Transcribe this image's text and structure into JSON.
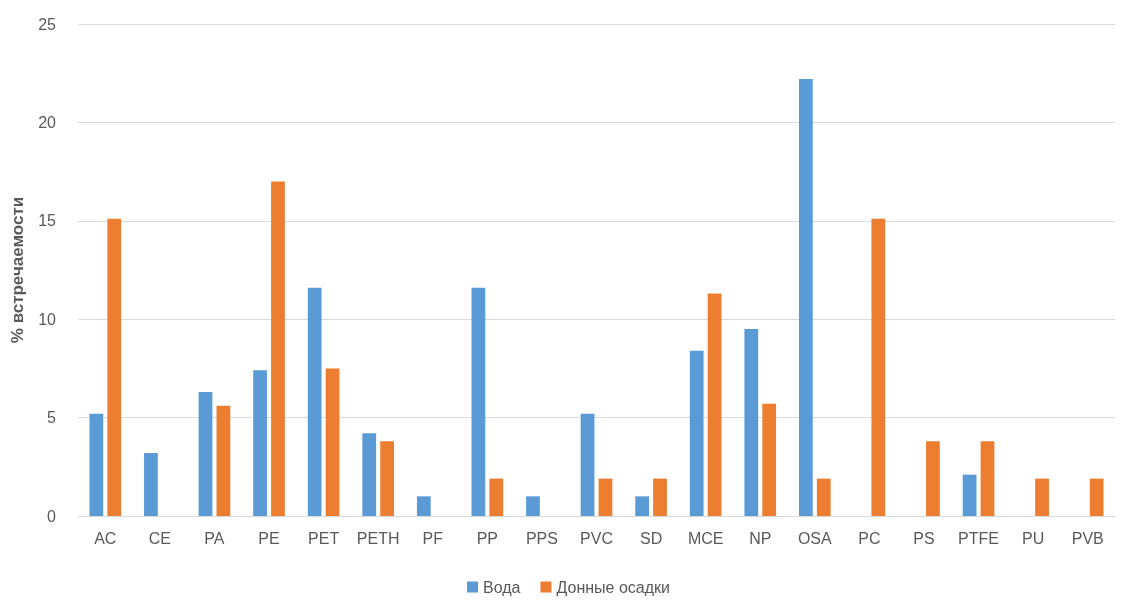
{
  "chart_data": {
    "type": "bar",
    "ylabel": "% встречаемости",
    "categories": [
      "AC",
      "CE",
      "PA",
      "PE",
      "PET",
      "PETH",
      "PF",
      "PP",
      "PPS",
      "PVC",
      "SD",
      "MCE",
      "NP",
      "OSA",
      "PC",
      "PS",
      "PTFE",
      "PU",
      "PVB"
    ],
    "series": [
      {
        "name": "Вода",
        "color": "#5b9bd5",
        "values": [
          5.2,
          3.2,
          6.3,
          7.4,
          11.6,
          4.2,
          1.0,
          11.6,
          1.0,
          5.2,
          1.0,
          8.4,
          9.5,
          22.2,
          null,
          null,
          2.1,
          null,
          null
        ]
      },
      {
        "name": "Донные осадки",
        "color": "#ed7d31",
        "values": [
          15.1,
          null,
          5.6,
          17.0,
          7.5,
          3.8,
          null,
          1.9,
          null,
          1.9,
          1.9,
          11.3,
          5.7,
          1.9,
          15.1,
          3.8,
          3.8,
          1.9,
          1.9
        ]
      }
    ],
    "ylim": [
      0,
      25
    ],
    "yticks": [
      0,
      5,
      10,
      15,
      20,
      25
    ],
    "grid": "y",
    "legend": "bottom"
  }
}
